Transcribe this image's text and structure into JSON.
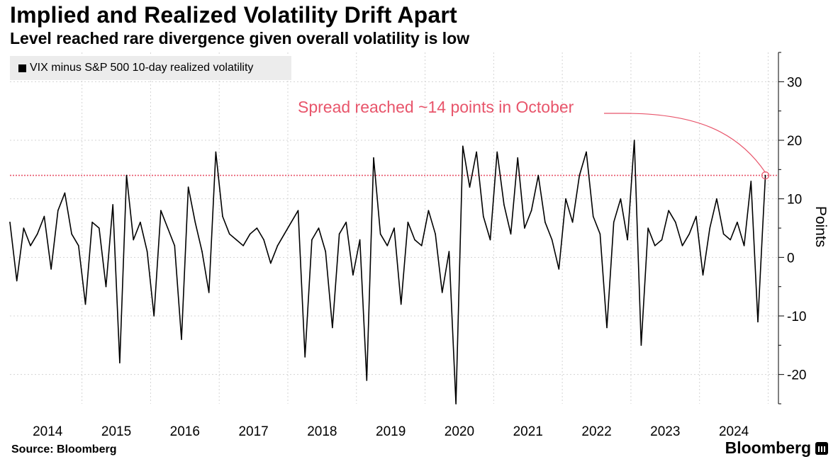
{
  "header": {
    "title": "Implied and Realized Volatility Drift Apart",
    "subtitle": "Level reached rare divergence given overall volatility is low"
  },
  "legend": {
    "label": "VIX minus S&P 500 10-day realized volatility"
  },
  "footer": {
    "source": "Source: Bloomberg",
    "brand": "Bloomberg"
  },
  "colors": {
    "series": "#000000",
    "reference": "#e8556b",
    "grid": "#d4d4d4",
    "legend_bg": "#ececec"
  },
  "chart_data": {
    "type": "line",
    "title": "Implied and Realized Volatility Drift Apart",
    "subtitle": "Level reached rare divergence given overall volatility is low",
    "ylabel": "Points",
    "xlabel": "",
    "ylim": [
      -25,
      35
    ],
    "yticks": [
      -20,
      -10,
      0,
      10,
      20,
      30
    ],
    "xlim": [
      2013.45,
      2024.65
    ],
    "xticks": [
      2014,
      2015,
      2016,
      2017,
      2018,
      2019,
      2020,
      2021,
      2022,
      2023,
      2024
    ],
    "x_tick_labels": [
      "2014",
      "2015",
      "2016",
      "2017",
      "2018",
      "2019",
      "2020",
      "2021",
      "2022",
      "2023",
      "2024"
    ],
    "grid": true,
    "legend_position": "top-left",
    "reference_line": {
      "y": 14,
      "style": "dotted"
    },
    "annotation": {
      "text": "Spread reached ~14 points in October",
      "target_x": 2024.46,
      "target_y": 14
    },
    "series": [
      {
        "name": "VIX minus S&P 500 10-day realized volatility",
        "x": [
          2013.45,
          2013.55,
          2013.65,
          2013.75,
          2013.85,
          2013.95,
          2014.05,
          2014.15,
          2014.25,
          2014.35,
          2014.45,
          2014.55,
          2014.65,
          2014.75,
          2014.85,
          2014.95,
          2015.05,
          2015.15,
          2015.25,
          2015.35,
          2015.45,
          2015.55,
          2015.65,
          2015.75,
          2015.85,
          2015.95,
          2016.05,
          2016.15,
          2016.25,
          2016.35,
          2016.45,
          2016.55,
          2016.65,
          2016.75,
          2016.85,
          2016.95,
          2017.05,
          2017.15,
          2017.25,
          2017.35,
          2017.45,
          2017.55,
          2017.65,
          2017.75,
          2017.85,
          2017.95,
          2018.05,
          2018.15,
          2018.25,
          2018.35,
          2018.45,
          2018.55,
          2018.65,
          2018.75,
          2018.85,
          2018.95,
          2019.05,
          2019.15,
          2019.25,
          2019.35,
          2019.45,
          2019.55,
          2019.65,
          2019.75,
          2019.85,
          2019.95,
          2020.05,
          2020.15,
          2020.25,
          2020.35,
          2020.45,
          2020.55,
          2020.65,
          2020.75,
          2020.85,
          2020.95,
          2021.05,
          2021.15,
          2021.25,
          2021.35,
          2021.45,
          2021.55,
          2021.65,
          2021.75,
          2021.85,
          2021.95,
          2022.05,
          2022.15,
          2022.25,
          2022.35,
          2022.45,
          2022.55,
          2022.65,
          2022.75,
          2022.85,
          2022.95,
          2023.05,
          2023.15,
          2023.25,
          2023.35,
          2023.45,
          2023.55,
          2023.65,
          2023.75,
          2023.85,
          2023.95,
          2024.05,
          2024.15,
          2024.25,
          2024.35,
          2024.42,
          2024.46
        ],
        "values": [
          6,
          -4,
          5,
          2,
          4,
          7,
          -2,
          8,
          11,
          4,
          2,
          -8,
          6,
          5,
          -5,
          9,
          -18,
          14,
          3,
          6,
          1,
          -10,
          8,
          5,
          2,
          -14,
          12,
          6,
          1,
          -6,
          18,
          7,
          4,
          3,
          2,
          4,
          5,
          3,
          -1,
          2,
          4,
          6,
          8,
          -17,
          3,
          5,
          1,
          -12,
          4,
          6,
          -3,
          3,
          -21,
          17,
          4,
          2,
          5,
          -8,
          6,
          3,
          2,
          8,
          4,
          -6,
          1,
          -25,
          19,
          12,
          18,
          7,
          3,
          18,
          9,
          4,
          17,
          5,
          8,
          14,
          6,
          3,
          -2,
          10,
          6,
          14,
          18,
          7,
          4,
          -12,
          6,
          10,
          3,
          20,
          -15,
          5,
          2,
          3,
          8,
          6,
          2,
          4,
          7,
          -3,
          5,
          10,
          4,
          3,
          6,
          2,
          13,
          -11,
          5,
          14
        ]
      }
    ]
  }
}
